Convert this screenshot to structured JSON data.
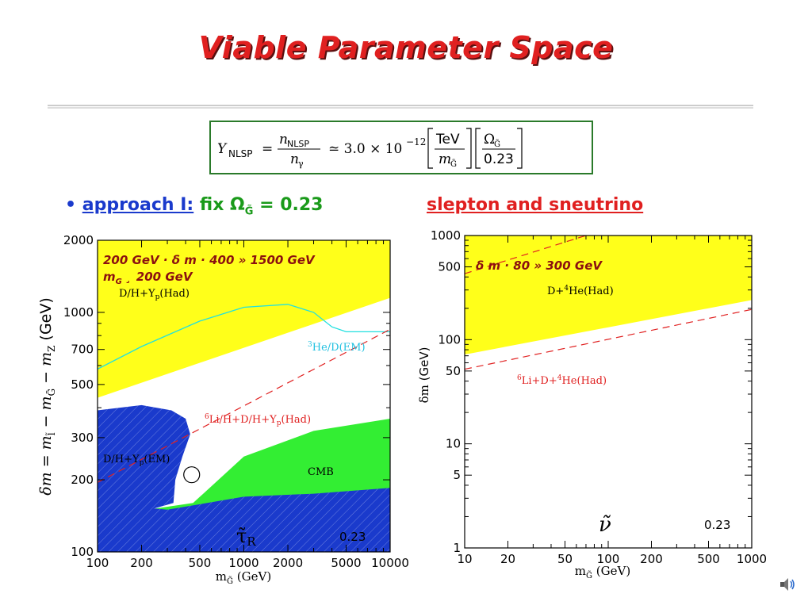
{
  "title": "Viable Parameter Space",
  "formula": {
    "lhs": "Y",
    "lhs_sub": "NLSP",
    "num": "n",
    "num_sub": "NLSP",
    "den": "n",
    "den_sub": "γ",
    "approx": "≃ 3.0 × 10",
    "exp": "−12",
    "frac1_num": "TeV",
    "frac1_den": "m",
    "frac1_den_sub": "G̃",
    "frac2_num": "Ω",
    "frac2_num_sub": "G̃",
    "frac2_den": "0.23"
  },
  "bullet": {
    "dot": "•",
    "label": "approach I:",
    "text": " fix Ω",
    "sub": "G̃",
    "tail": " = 0.23"
  },
  "heading_right": "slepton and sneutrino",
  "colors": {
    "yellow": "#ffff1a",
    "green": "#33ee33",
    "blue": "#1a3acc",
    "red": "#e02020",
    "cyan": "#20e0e0",
    "darkred": "#8b1010"
  },
  "chart_data": [
    {
      "type": "area",
      "x_scale": "log",
      "y_scale": "log",
      "xlim": [
        100,
        10000
      ],
      "ylim": [
        100,
        2000
      ],
      "xticks": [
        "100",
        "200",
        "500",
        "1000",
        "2000",
        "5000",
        "10000"
      ],
      "xtick_values": [
        100,
        200,
        500,
        1000,
        2000,
        5000,
        10000
      ],
      "yticks": [
        "100",
        "200",
        "300",
        "500",
        "700",
        "1000",
        "2000"
      ],
      "ytick_values": [
        100,
        200,
        300,
        500,
        700,
        1000,
        2000
      ],
      "xlabel": "m",
      "xlabel_sub": "G̃",
      "xlabel_unit": " (GeV)",
      "ylabel": "δm = m",
      "ylabel_sub1": "l̃",
      "ylabel_mid": " − m",
      "ylabel_sub2": "G̃",
      "ylabel_tail": " − m",
      "ylabel_sub3": "Z",
      "ylabel_unit": "  (GeV)",
      "annotation_line1": "200 GeV · δ m · 400 » 1500 GeV",
      "annotation_line2_main": "m",
      "annotation_line2_sub": "G",
      "annotation_line2_tail": " ¸ 200 GeV",
      "region_labels": {
        "dh_yp_had": "D/H+Y",
        "dh_yp_had_sub": "p",
        "dh_yp_had_tail": "(Had)",
        "he_d_em_sup": "3",
        "he_d_em": "He/D(EM)",
        "li_sup": "6",
        "li": "Li/H+D/H+Y",
        "li_sub": "p",
        "li_tail": "(Had)",
        "dh_yp_em": "D/H+Y",
        "dh_yp_em_sub": "p",
        "dh_yp_em_tail": "(EM)",
        "cmb": "CMB"
      },
      "particle": "τ̃",
      "particle_sub": "R",
      "omega_label": "0.23",
      "regions": {
        "yellow": [
          [
            100,
            2000
          ],
          [
            10000,
            2000
          ],
          [
            10000,
            1150
          ],
          [
            100,
            440
          ]
        ],
        "green": [
          [
            450,
            160
          ],
          [
            1000,
            250
          ],
          [
            3000,
            320
          ],
          [
            10000,
            360
          ],
          [
            10000,
            100
          ],
          [
            100,
            100
          ],
          [
            100,
            140
          ]
        ],
        "blue_left": [
          [
            100,
            390
          ],
          [
            200,
            410
          ],
          [
            320,
            390
          ],
          [
            400,
            360
          ],
          [
            430,
            310
          ],
          [
            380,
            250
          ],
          [
            340,
            200
          ],
          [
            330,
            160
          ],
          [
            100,
            130
          ]
        ],
        "blue_bottom": [
          [
            100,
            160
          ],
          [
            300,
            150
          ],
          [
            1000,
            170
          ],
          [
            3000,
            175
          ],
          [
            10000,
            185
          ],
          [
            10000,
            100
          ],
          [
            100,
            100
          ]
        ]
      },
      "lines": {
        "cyan": [
          [
            100,
            580
          ],
          [
            200,
            720
          ],
          [
            500,
            920
          ],
          [
            1000,
            1050
          ],
          [
            2000,
            1080
          ],
          [
            3000,
            1000
          ],
          [
            4000,
            870
          ],
          [
            5000,
            830
          ],
          [
            10000,
            830
          ]
        ],
        "red_dashed": [
          [
            100,
            195
          ],
          [
            10000,
            850
          ]
        ]
      },
      "circle_marker": [
        440,
        210
      ]
    },
    {
      "type": "area",
      "x_scale": "log",
      "y_scale": "log",
      "xlim": [
        10,
        1000
      ],
      "ylim": [
        1,
        1000
      ],
      "xticks": [
        "10",
        "20",
        "50",
        "100",
        "200",
        "500",
        "1000"
      ],
      "xtick_values": [
        10,
        20,
        50,
        100,
        200,
        500,
        1000
      ],
      "yticks": [
        "1",
        "5",
        "10",
        "50",
        "100",
        "500",
        "1000"
      ],
      "ytick_values": [
        1,
        5,
        10,
        50,
        100,
        500,
        1000
      ],
      "xlabel": "m",
      "xlabel_sub": "G̃",
      "xlabel_unit": " (GeV)",
      "ylabel": "δm",
      "ylabel_unit": "  (GeV)",
      "annotation": "δ m · 80 » 300 GeV",
      "region_labels": {
        "d_he_had": "D+",
        "d_he_had_sup": "4",
        "d_he_had_tail": "He(Had)",
        "li_sup": "6",
        "li": "Li+D+",
        "li_sup2": "4",
        "li_tail": "He(Had)"
      },
      "particle": "ν̃",
      "omega_label": "0.23",
      "regions": {
        "yellow": [
          [
            10,
            1000
          ],
          [
            1000,
            1000
          ],
          [
            1000,
            240
          ],
          [
            10,
            72
          ]
        ]
      },
      "lines": {
        "red_dashed_lower": [
          [
            10,
            52
          ],
          [
            1000,
            195
          ]
        ],
        "red_dashed_upper": [
          [
            10,
            430
          ],
          [
            70,
            1000
          ]
        ]
      }
    }
  ]
}
